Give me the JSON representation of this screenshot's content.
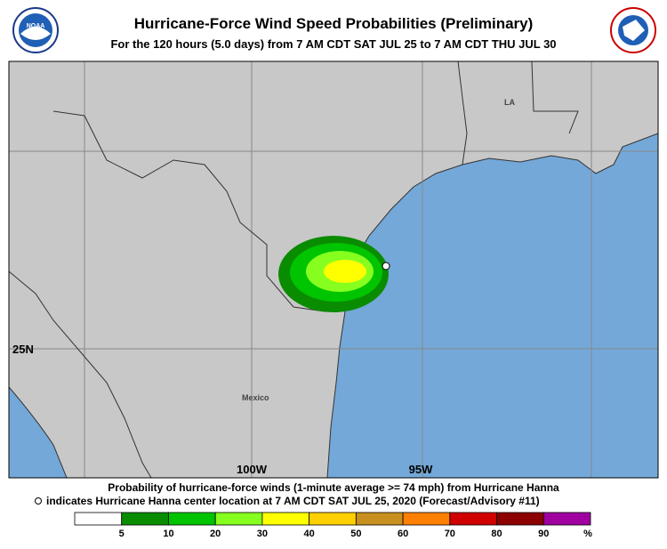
{
  "header": {
    "title": "Hurricane-Force Wind Speed Probabilities (Preliminary)",
    "subtitle": "For the 120 hours (5.0 days) from 7 AM CDT SAT JUL 25 to 7 AM CDT THU JUL 30",
    "left_logo": "NOAA"
  },
  "map": {
    "labels": {
      "state": "LA",
      "country": "Mexico",
      "lat": "25N",
      "lon_west": "100W",
      "lon_east": "95W"
    }
  },
  "legend": {
    "line1": "Probability of hurricane-force winds (1-minute average >= 74 mph) from Hurricane Hanna",
    "line2": "indicates Hurricane Hanna center location at 7 AM CDT SAT JUL 25, 2020 (Forecast/Advisory #11)",
    "colors": [
      "#ffffff",
      "#0a8c00",
      "#00c400",
      "#86ff1e",
      "#ffff00",
      "#ffd000",
      "#c8901e",
      "#ff8000",
      "#d00000",
      "#8c0000",
      "#a000a0"
    ],
    "labels": [
      "5",
      "10",
      "20",
      "30",
      "40",
      "50",
      "60",
      "70",
      "80",
      "90",
      "%"
    ]
  }
}
